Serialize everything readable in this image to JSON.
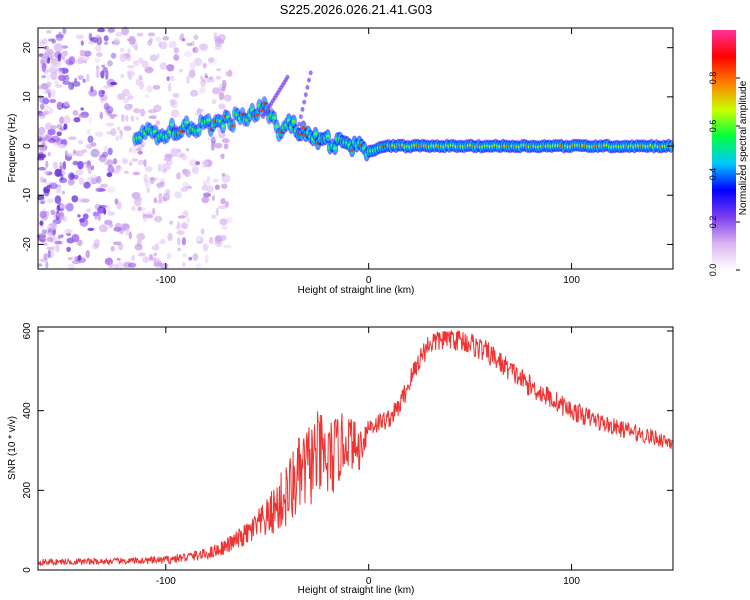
{
  "title": "S225.2026.026.21.41.G03",
  "chart_data": [
    {
      "type": "heatmap",
      "xlabel": "Height of straight line (km)",
      "ylabel": "Frequency (Hz)",
      "xlim": [
        -163,
        150
      ],
      "ylim": [
        -25,
        24
      ],
      "xticks": [
        -100,
        0,
        100
      ],
      "yticks": [
        20,
        10,
        0,
        -10,
        -20
      ],
      "colorbar": {
        "label": "Normalized spectral amplitude",
        "range": [
          0,
          1
        ],
        "ticks": [
          0,
          0.2,
          0.4,
          0.6,
          0.8
        ],
        "tick_labels": [
          "0.0",
          "0.2",
          "0.4",
          "0.6",
          "0.8"
        ],
        "colors": [
          "#ffffff",
          "#d9b3f0",
          "#7a3cf0",
          "#0000ff",
          "#00c8ff",
          "#00ff40",
          "#c8ff00",
          "#ff8000",
          "#ff0000",
          "#ff3399"
        ]
      },
      "ridge": {
        "x": [
          -115,
          -100,
          -85,
          -70,
          -60,
          -50,
          -45,
          -40,
          -30,
          -20,
          -10,
          0,
          10,
          20,
          40,
          60,
          80,
          100,
          120,
          150
        ],
        "y": [
          2,
          3,
          4,
          5,
          6,
          8,
          3,
          5,
          2,
          1,
          0,
          -1,
          0,
          0,
          0,
          0,
          0,
          0,
          0,
          0
        ]
      }
    },
    {
      "type": "line",
      "xlabel": "Height of straight line (km)",
      "ylabel": "SNR (10 * v/v)",
      "xlim": [
        -163,
        150
      ],
      "ylim": [
        0,
        610
      ],
      "xticks": [
        -100,
        0,
        100
      ],
      "yticks": [
        0,
        200,
        400,
        600
      ],
      "color": "#ee3333",
      "envelope_x": [
        -163,
        -120,
        -100,
        -80,
        -70,
        -60,
        -50,
        -40,
        -35,
        -30,
        -25,
        -20,
        -15,
        -10,
        -5,
        0,
        5,
        10,
        15,
        20,
        25,
        30,
        40,
        50,
        60,
        70,
        80,
        100,
        120,
        150
      ],
      "envelope_y": [
        20,
        22,
        25,
        40,
        60,
        90,
        130,
        190,
        230,
        260,
        290,
        270,
        300,
        330,
        300,
        360,
        370,
        380,
        410,
        470,
        530,
        570,
        585,
        570,
        540,
        500,
        460,
        400,
        360,
        320
      ],
      "noise_amp": [
        8,
        8,
        10,
        15,
        20,
        30,
        50,
        90,
        100,
        110,
        110,
        110,
        90,
        70,
        60,
        30,
        25,
        25,
        25,
        30,
        30,
        30,
        30,
        30,
        30,
        28,
        28,
        25,
        22,
        20
      ]
    }
  ]
}
